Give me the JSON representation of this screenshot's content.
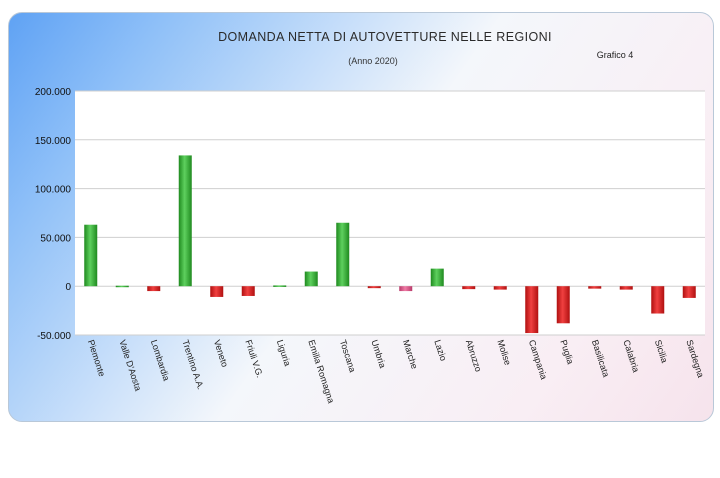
{
  "chart_data": {
    "type": "bar",
    "title": "DOMANDA NETTA DI AUTOVETTURE NELLE REGIONI",
    "subtitle": "(Anno 2020)",
    "label": "Grafico 4",
    "xlabel": "",
    "ylabel": "",
    "ylim": [
      -50000,
      200000
    ],
    "yticks": [
      200000,
      150000,
      100000,
      50000,
      0,
      -50000
    ],
    "ytick_labels": [
      "200.000",
      "150.000",
      "100.000",
      "50.000",
      "0",
      "-50.000"
    ],
    "grid": true,
    "legend": "none",
    "colors": {
      "positive": "#3cb43c",
      "negative": "#dd2222",
      "marche": "#e05a8a"
    },
    "categories": [
      "Piemonte",
      "Valle D'Aosta",
      "Lombardia",
      "Trentino A.A.",
      "Veneto",
      "Friuli V.G.",
      "Liguria",
      "Emilia Romagna",
      "Toscana",
      "Umbria",
      "Marche",
      "Lazio",
      "Abruzzo",
      "Molise",
      "Campania",
      "Puglia",
      "Basilicata",
      "Calabria",
      "Sicilia",
      "Sardegna"
    ],
    "values": [
      63000,
      500,
      -5000,
      134000,
      -11000,
      -10000,
      800,
      15000,
      65000,
      -2000,
      -5000,
      18000,
      -3000,
      -3500,
      -48000,
      -38000,
      -2500,
      -3500,
      -28000,
      -12000
    ]
  }
}
